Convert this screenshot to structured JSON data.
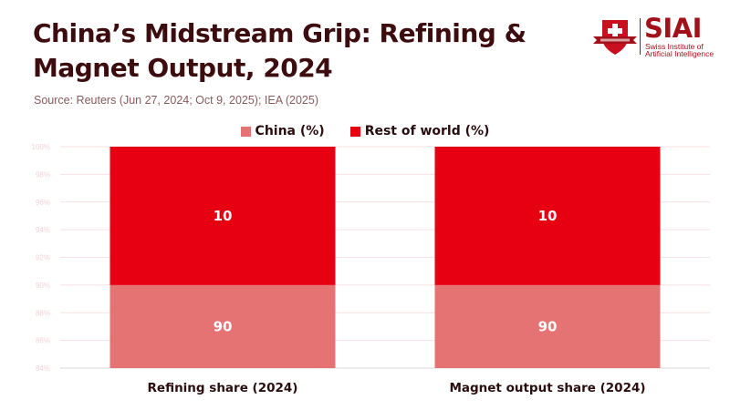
{
  "header": {
    "title": "China’s Midstream Grip: Refining & Magnet Output, 2024",
    "source": "Source: Reuters (Jun 27, 2024; Oct 9, 2025); IEA (2025)"
  },
  "logo": {
    "name": "SIAI",
    "line1": "Swiss Institute of",
    "line2": "Artificial Intelligence",
    "icon": "swiss-cross-shield-icon"
  },
  "colors": {
    "china": "#e57373",
    "rest_of_world": "#e60012",
    "title": "#3d0c0e",
    "grid": "#f8e1e2",
    "logo": "#a3101a"
  },
  "chart_data": {
    "type": "bar",
    "stacked": true,
    "title": "China’s Midstream Grip: Refining & Magnet Output, 2024",
    "subtitle": "Source: Reuters (Jun 27, 2024; Oct 9, 2025); IEA (2025)",
    "categories": [
      "Refining share (2024)",
      "Magnet output share (2024)"
    ],
    "series": [
      {
        "name": "China (%)",
        "values": [
          90,
          90
        ]
      },
      {
        "name": "Rest of world (%)",
        "values": [
          10,
          10
        ]
      }
    ],
    "xlabel": "",
    "ylabel": "",
    "ylim": [
      84,
      100
    ],
    "yticks": [
      "84%",
      "86%",
      "88%",
      "90%",
      "92%",
      "94%",
      "96%",
      "98%",
      "100%"
    ],
    "ytick_values": [
      84,
      86,
      88,
      90,
      92,
      94,
      96,
      98,
      100
    ],
    "grid": true,
    "legend_position": "top-center"
  }
}
